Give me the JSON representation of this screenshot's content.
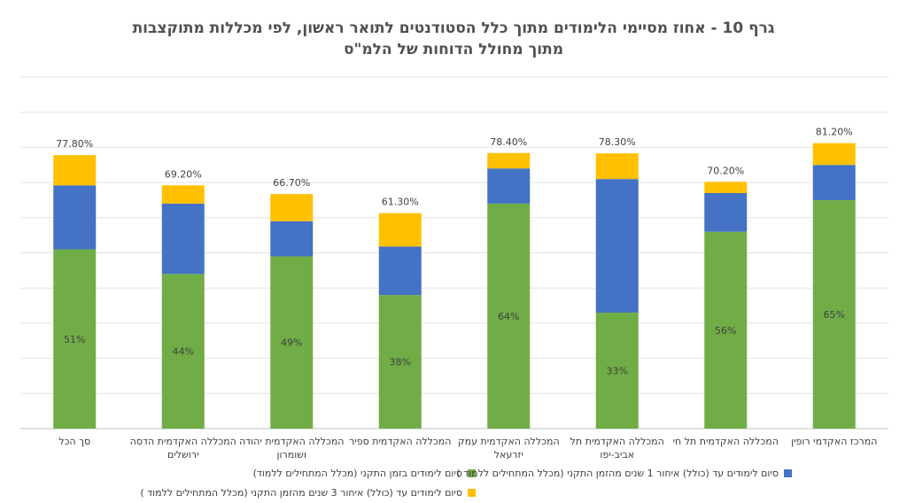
{
  "chart_data": {
    "type": "bar",
    "stacked": true,
    "title_line1": "גרף 10 - אחוז מסיימי הלימודים מתוך כלל הסטודנטים לתואר ראשון, לפי מכללות מתוקצבות",
    "title_line2": "מתוך מחולל הדוחות של הלמ\"ס",
    "categories": [
      "סך הכל",
      "המכללה האקדמית הדסה ירושלים",
      "המכללה האקדמית יהודה ושומרון",
      "המכללה האקדמית ספיר",
      "המכללה האקדמית עמק יזרעאל",
      "המכללה האקדמית תל אביב-יפו",
      "המכללה האקדמית תל חי",
      "המרכז האקדמי רופין"
    ],
    "category_lines": [
      [
        "סך הכל"
      ],
      [
        "המכללה האקדמית הדסה",
        "ירושלים"
      ],
      [
        "המכללה האקדמית יהודה",
        "ושומרון"
      ],
      [
        "המכללה האקדמית ספיר"
      ],
      [
        "המכללה האקדמית עמק",
        "יזרעאל"
      ],
      [
        "המכללה האקדמית תל",
        "אביב-יפו"
      ],
      [
        "המכללה האקדמית תל חי"
      ],
      [
        "המרכז האקדמי רופין"
      ]
    ],
    "series": [
      {
        "name": "סיום לימודים בזמן התקני (מכלל המתחילים ללמוד)",
        "color": "#70AD47",
        "values": [
          51,
          44,
          49,
          38,
          64,
          33,
          56,
          65
        ],
        "labels": [
          "51%",
          "44%",
          "49%",
          "38%",
          "64%",
          "33%",
          "56%",
          "65%"
        ]
      },
      {
        "name": "סיום לימודים עד (כולל) איחור 1 שנים מהזמן התקני (מכלל המתחילים ללמוד )",
        "color": "#4472C4",
        "values": [
          18.2,
          20.0,
          10.0,
          13.8,
          10.0,
          38.0,
          11.0,
          10.0
        ]
      },
      {
        "name": "סיום לימודים עד (כולל) איחור 3 שנים מהזמן התקני (מכלל המתחילים ללמוד )",
        "color": "#FFC000",
        "values": [
          8.6,
          5.2,
          7.7,
          9.5,
          4.4,
          7.3,
          3.2,
          6.2
        ]
      }
    ],
    "totals": [
      "77.80%",
      "69.20%",
      "66.70%",
      "61.30%",
      "78.40%",
      "78.30%",
      "70.20%",
      "81.20%"
    ],
    "total_values": [
      77.8,
      69.2,
      66.7,
      61.3,
      78.4,
      78.3,
      70.2,
      81.2
    ],
    "ylim": [
      0,
      100
    ],
    "gridlines": true,
    "axis_labels_shown": false,
    "legend_position": "bottom"
  }
}
